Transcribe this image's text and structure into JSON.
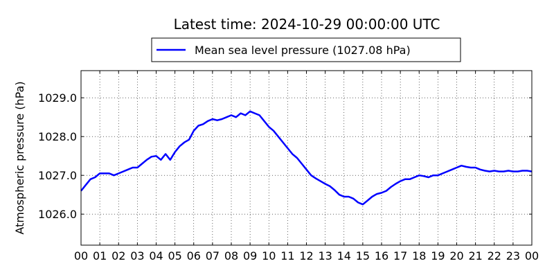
{
  "chart_data": {
    "type": "line",
    "title": "Latest time: 2024-10-29 00:00:00 UTC",
    "xlabel": "",
    "ylabel": "Atmospheric pressure (hPa)",
    "xlim": [
      0,
      24
    ],
    "ylim": [
      1025.2,
      1029.7
    ],
    "grid": true,
    "legend_placement": "top-center",
    "x_ticks": [
      0,
      1,
      2,
      3,
      4,
      5,
      6,
      7,
      8,
      9,
      10,
      11,
      12,
      13,
      14,
      15,
      16,
      17,
      18,
      19,
      20,
      21,
      22,
      23,
      24
    ],
    "x_tick_labels": [
      "00",
      "01",
      "02",
      "03",
      "04",
      "05",
      "06",
      "07",
      "08",
      "09",
      "10",
      "11",
      "12",
      "13",
      "14",
      "15",
      "16",
      "17",
      "18",
      "19",
      "20",
      "21",
      "22",
      "23",
      "00"
    ],
    "y_ticks": [
      1026.0,
      1027.0,
      1028.0,
      1029.0
    ],
    "y_tick_labels": [
      "1026.0",
      "1027.0",
      "1028.0",
      "1029.0"
    ],
    "series": [
      {
        "name": "Mean sea level pressure (1027.08 hPa)",
        "color": "#0000ff",
        "x": [
          0,
          0.25,
          0.5,
          0.75,
          1,
          1.25,
          1.5,
          1.75,
          2,
          2.25,
          2.5,
          2.75,
          3,
          3.25,
          3.5,
          3.75,
          4,
          4.25,
          4.5,
          4.75,
          5,
          5.25,
          5.5,
          5.75,
          6,
          6.25,
          6.5,
          6.75,
          7,
          7.25,
          7.5,
          7.75,
          8,
          8.25,
          8.5,
          8.75,
          9,
          9.25,
          9.5,
          9.75,
          10,
          10.25,
          10.5,
          10.75,
          11,
          11.25,
          11.5,
          11.75,
          12,
          12.25,
          12.5,
          12.75,
          13,
          13.25,
          13.5,
          13.75,
          14,
          14.25,
          14.5,
          14.75,
          15,
          15.25,
          15.5,
          15.75,
          16,
          16.25,
          16.5,
          16.75,
          17,
          17.25,
          17.5,
          17.75,
          18,
          18.25,
          18.5,
          18.75,
          19,
          19.25,
          19.5,
          19.75,
          20,
          20.25,
          20.5,
          20.75,
          21,
          21.25,
          21.5,
          21.75,
          22,
          22.25,
          22.5,
          22.75,
          23,
          23.25,
          23.5,
          23.75,
          24
        ],
        "values": [
          1026.6,
          1026.75,
          1026.9,
          1026.95,
          1027.05,
          1027.05,
          1027.05,
          1027.0,
          1027.05,
          1027.1,
          1027.15,
          1027.2,
          1027.2,
          1027.3,
          1027.4,
          1027.48,
          1027.5,
          1027.4,
          1027.55,
          1027.4,
          1027.6,
          1027.75,
          1027.85,
          1027.92,
          1028.15,
          1028.28,
          1028.32,
          1028.4,
          1028.45,
          1028.42,
          1028.45,
          1028.5,
          1028.55,
          1028.5,
          1028.6,
          1028.55,
          1028.65,
          1028.6,
          1028.55,
          1028.4,
          1028.25,
          1028.15,
          1028.0,
          1027.85,
          1027.7,
          1027.55,
          1027.45,
          1027.3,
          1027.15,
          1027.0,
          1026.92,
          1026.85,
          1026.78,
          1026.72,
          1026.62,
          1026.5,
          1026.45,
          1026.45,
          1026.4,
          1026.3,
          1026.25,
          1026.35,
          1026.45,
          1026.52,
          1026.55,
          1026.6,
          1026.7,
          1026.78,
          1026.85,
          1026.9,
          1026.9,
          1026.95,
          1027.0,
          1026.98,
          1026.95,
          1027.0,
          1027.0,
          1027.05,
          1027.1,
          1027.15,
          1027.2,
          1027.25,
          1027.22,
          1027.2,
          1027.2,
          1027.15,
          1027.12,
          1027.1,
          1027.12,
          1027.1,
          1027.1,
          1027.12,
          1027.1,
          1027.1,
          1027.12,
          1027.12,
          1027.1
        ]
      }
    ]
  }
}
